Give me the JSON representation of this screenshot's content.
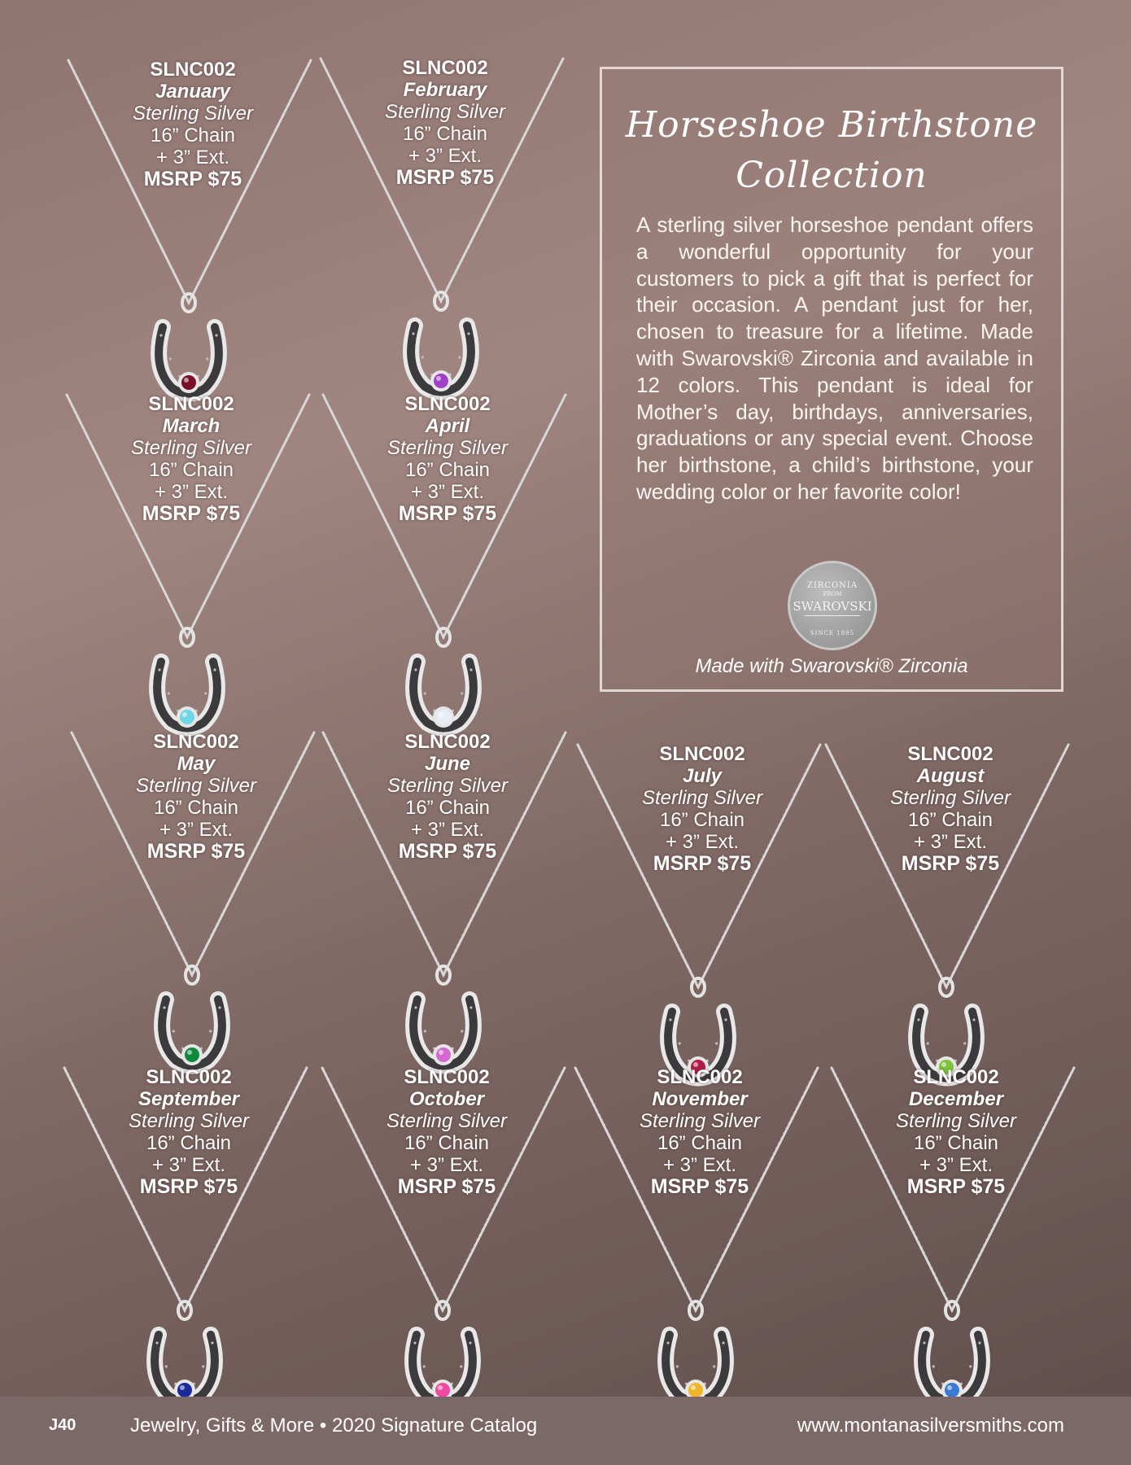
{
  "necklaces": [
    {
      "sku": "SLNC002",
      "month": "January",
      "material": "Sterling Silver",
      "chain": "16” Chain",
      "ext": "+ 3” Ext.",
      "price": "MSRP $75",
      "stone": "#7a0f2a"
    },
    {
      "sku": "SLNC002",
      "month": "February",
      "material": "Sterling Silver",
      "chain": "16” Chain",
      "ext": "+ 3” Ext.",
      "price": "MSRP $75",
      "stone": "#a042c8"
    },
    {
      "sku": "SLNC002",
      "month": "March",
      "material": "Sterling Silver",
      "chain": "16” Chain",
      "ext": "+ 3” Ext.",
      "price": "MSRP $75",
      "stone": "#6fd6e6"
    },
    {
      "sku": "SLNC002",
      "month": "April",
      "material": "Sterling Silver",
      "chain": "16” Chain",
      "ext": "+ 3” Ext.",
      "price": "MSRP $75",
      "stone": "#e8eef6"
    },
    {
      "sku": "SLNC002",
      "month": "May",
      "material": "Sterling Silver",
      "chain": "16” Chain",
      "ext": "+ 3” Ext.",
      "price": "MSRP $75",
      "stone": "#0f8a3c"
    },
    {
      "sku": "SLNC002",
      "month": "June",
      "material": "Sterling Silver",
      "chain": "16” Chain",
      "ext": "+ 3” Ext.",
      "price": "MSRP $75",
      "stone": "#d46ad0"
    },
    {
      "sku": "SLNC002",
      "month": "July",
      "material": "Sterling Silver",
      "chain": "16” Chain",
      "ext": "+ 3” Ext.",
      "price": "MSRP $75",
      "stone": "#b01d4a"
    },
    {
      "sku": "SLNC002",
      "month": "August",
      "material": "Sterling Silver",
      "chain": "16” Chain",
      "ext": "+ 3” Ext.",
      "price": "MSRP $75",
      "stone": "#7dc23a"
    },
    {
      "sku": "SLNC002",
      "month": "September",
      "material": "Sterling Silver",
      "chain": "16” Chain",
      "ext": "+ 3” Ext.",
      "price": "MSRP $75",
      "stone": "#1a2a9a"
    },
    {
      "sku": "SLNC002",
      "month": "October",
      "material": "Sterling Silver",
      "chain": "16” Chain",
      "ext": "+ 3” Ext.",
      "price": "MSRP $75",
      "stone": "#ee4aa2"
    },
    {
      "sku": "SLNC002",
      "month": "November",
      "material": "Sterling Silver",
      "chain": "16” Chain",
      "ext": "+ 3” Ext.",
      "price": "MSRP $75",
      "stone": "#f0b428"
    },
    {
      "sku": "SLNC002",
      "month": "December",
      "material": "Sterling Silver",
      "chain": "16” Chain",
      "ext": "+ 3” Ext.",
      "price": "MSRP $75",
      "stone": "#3a7ad0"
    }
  ],
  "collection": {
    "heading_line1": "Horseshoe Birthstone",
    "heading_line2": "Collection",
    "description": "A sterling silver horseshoe pendant offers a wonderful opportunity for your customers to pick a gift that is perfect for their occasion. A pendant just for her, chosen to treasure for a lifetime. Made with Swarovski® Zirconia and available in 12 colors. This pendant is ideal for Mother’s day, birthdays, anniversaries, graduations or any special event. Choose her birthstone, a child’s birthstone, your wedding color or her favorite color!",
    "seal": {
      "line1": "ZIRCONIA",
      "line2": "FROM",
      "line3": "SWAROVSKI",
      "line4": "SINCE 1895"
    },
    "caption": "Made with Swarovski® Zirconia"
  },
  "footer": {
    "page_number": "J40",
    "catalog": "Jewelry, Gifts & More • 2020 Signature Catalog",
    "url": "www.montanasilversmiths.com"
  }
}
